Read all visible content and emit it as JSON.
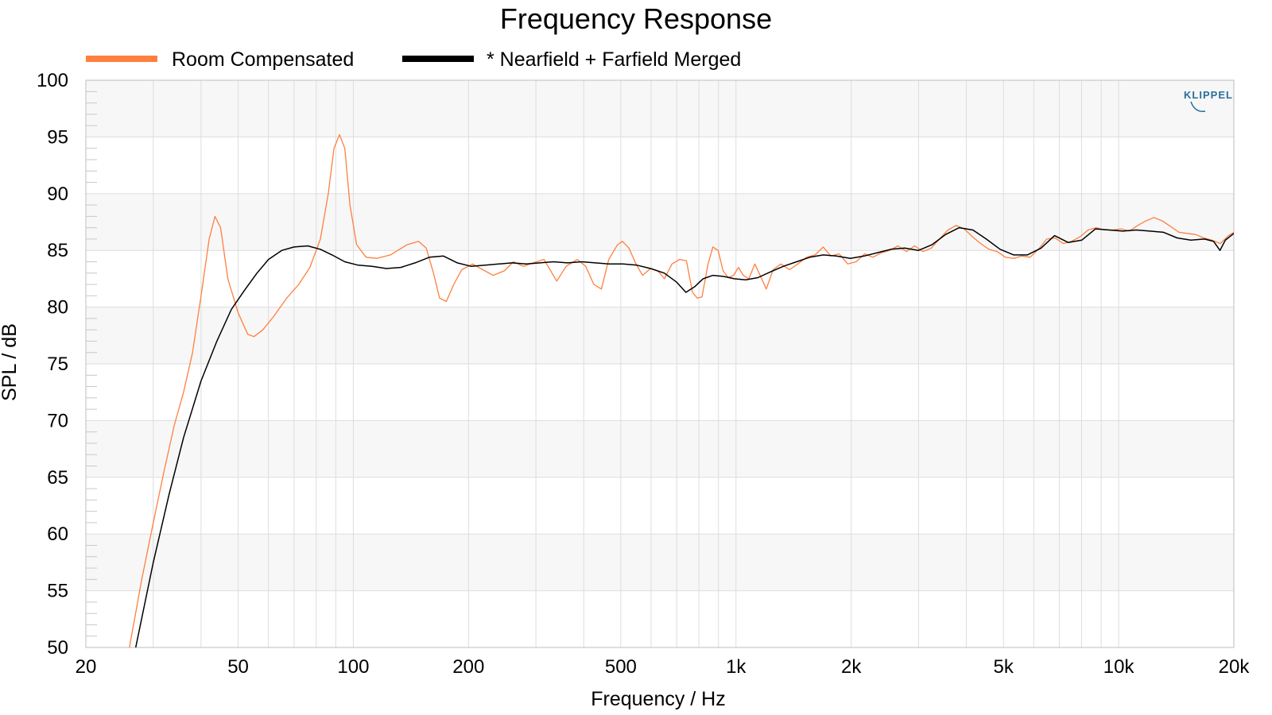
{
  "chart_data": {
    "type": "line",
    "title": "Frequency Response",
    "xlabel": "Frequency / Hz",
    "ylabel": "SPL / dB",
    "xscale": "log",
    "xlim": [
      20,
      20000
    ],
    "ylim": [
      50,
      100
    ],
    "grid": true,
    "legend_position": "top-left",
    "x_ticks": [
      {
        "value": 20,
        "label": "20"
      },
      {
        "value": 50,
        "label": "50"
      },
      {
        "value": 100,
        "label": "100"
      },
      {
        "value": 200,
        "label": "200"
      },
      {
        "value": 500,
        "label": "500"
      },
      {
        "value": 1000,
        "label": "1k"
      },
      {
        "value": 2000,
        "label": "2k"
      },
      {
        "value": 5000,
        "label": "5k"
      },
      {
        "value": 10000,
        "label": "10k"
      },
      {
        "value": 20000,
        "label": "20k"
      }
    ],
    "y_ticks": [
      {
        "value": 50,
        "label": "50"
      },
      {
        "value": 55,
        "label": "55"
      },
      {
        "value": 60,
        "label": "60"
      },
      {
        "value": 65,
        "label": "65"
      },
      {
        "value": 70,
        "label": "70"
      },
      {
        "value": 75,
        "label": "75"
      },
      {
        "value": 80,
        "label": "80"
      },
      {
        "value": 85,
        "label": "85"
      },
      {
        "value": 90,
        "label": "90"
      },
      {
        "value": 95,
        "label": "95"
      },
      {
        "value": 100,
        "label": "100"
      }
    ],
    "series": [
      {
        "name": "Room Compensated",
        "color": "#ff7f3f",
        "points": [
          [
            26,
            50
          ],
          [
            28,
            56
          ],
          [
            30,
            61
          ],
          [
            32,
            65.5
          ],
          [
            34,
            69.5
          ],
          [
            36,
            72.5
          ],
          [
            38,
            76
          ],
          [
            40,
            81
          ],
          [
            42,
            86
          ],
          [
            43.5,
            88
          ],
          [
            45,
            87
          ],
          [
            47,
            82.5
          ],
          [
            50,
            79.5
          ],
          [
            53,
            77.6
          ],
          [
            55,
            77.4
          ],
          [
            58,
            78
          ],
          [
            62,
            79.2
          ],
          [
            67,
            80.8
          ],
          [
            72,
            82
          ],
          [
            77,
            83.5
          ],
          [
            82,
            86
          ],
          [
            86,
            90
          ],
          [
            89,
            94
          ],
          [
            92,
            95.2
          ],
          [
            95,
            94
          ],
          [
            98,
            89
          ],
          [
            102,
            85.5
          ],
          [
            108,
            84.4
          ],
          [
            115,
            84.3
          ],
          [
            125,
            84.6
          ],
          [
            138,
            85.5
          ],
          [
            148,
            85.8
          ],
          [
            155,
            85.2
          ],
          [
            162,
            83
          ],
          [
            168,
            80.8
          ],
          [
            175,
            80.5
          ],
          [
            183,
            82
          ],
          [
            192,
            83.3
          ],
          [
            205,
            83.8
          ],
          [
            218,
            83.3
          ],
          [
            232,
            82.8
          ],
          [
            248,
            83.2
          ],
          [
            262,
            84
          ],
          [
            278,
            83.6
          ],
          [
            295,
            83.9
          ],
          [
            315,
            84.2
          ],
          [
            328,
            83.2
          ],
          [
            340,
            82.3
          ],
          [
            360,
            83.6
          ],
          [
            385,
            84.2
          ],
          [
            405,
            83.6
          ],
          [
            425,
            82
          ],
          [
            445,
            81.6
          ],
          [
            465,
            84.2
          ],
          [
            490,
            85.5
          ],
          [
            505,
            85.8
          ],
          [
            525,
            85.2
          ],
          [
            548,
            83.8
          ],
          [
            570,
            82.8
          ],
          [
            598,
            83.4
          ],
          [
            625,
            83.2
          ],
          [
            650,
            82.5
          ],
          [
            680,
            83.8
          ],
          [
            712,
            84.2
          ],
          [
            742,
            84.1
          ],
          [
            770,
            81.3
          ],
          [
            792,
            80.8
          ],
          [
            815,
            80.9
          ],
          [
            845,
            83.8
          ],
          [
            870,
            85.3
          ],
          [
            898,
            85
          ],
          [
            925,
            83.2
          ],
          [
            955,
            82.6
          ],
          [
            985,
            82.8
          ],
          [
            1015,
            83.5
          ],
          [
            1045,
            82.8
          ],
          [
            1080,
            82.5
          ],
          [
            1120,
            83.8
          ],
          [
            1160,
            82.7
          ],
          [
            1200,
            81.6
          ],
          [
            1250,
            83.3
          ],
          [
            1310,
            83.8
          ],
          [
            1380,
            83.3
          ],
          [
            1450,
            83.8
          ],
          [
            1530,
            84.4
          ],
          [
            1610,
            84.6
          ],
          [
            1690,
            85.3
          ],
          [
            1770,
            84.5
          ],
          [
            1860,
            84.7
          ],
          [
            1960,
            83.8
          ],
          [
            2060,
            84
          ],
          [
            2170,
            84.7
          ],
          [
            2280,
            84.4
          ],
          [
            2400,
            84.8
          ],
          [
            2520,
            85
          ],
          [
            2650,
            85.4
          ],
          [
            2790,
            84.9
          ],
          [
            2930,
            85.4
          ],
          [
            3080,
            84.9
          ],
          [
            3240,
            85.2
          ],
          [
            3400,
            86
          ],
          [
            3580,
            86.8
          ],
          [
            3760,
            87.2
          ],
          [
            3950,
            86.9
          ],
          [
            4150,
            86.2
          ],
          [
            4360,
            85.6
          ],
          [
            4580,
            85.1
          ],
          [
            4810,
            84.9
          ],
          [
            5060,
            84.4
          ],
          [
            5320,
            84.3
          ],
          [
            5590,
            84.5
          ],
          [
            5870,
            84.4
          ],
          [
            6170,
            85.1
          ],
          [
            6490,
            86
          ],
          [
            6820,
            86.1
          ],
          [
            7170,
            85.6
          ],
          [
            7530,
            85.8
          ],
          [
            7920,
            86.2
          ],
          [
            8320,
            86.8
          ],
          [
            8740,
            87
          ],
          [
            9190,
            86.8
          ],
          [
            9660,
            86.8
          ],
          [
            10150,
            86.9
          ],
          [
            10670,
            86.7
          ],
          [
            11210,
            87.2
          ],
          [
            11780,
            87.6
          ],
          [
            12380,
            87.9
          ],
          [
            13010,
            87.6
          ],
          [
            13680,
            87.1
          ],
          [
            14380,
            86.6
          ],
          [
            15110,
            86.5
          ],
          [
            15880,
            86.4
          ],
          [
            16690,
            86.1
          ],
          [
            17540,
            85.9
          ],
          [
            18430,
            85.6
          ],
          [
            19370,
            86.3
          ],
          [
            20000,
            86.6
          ]
        ]
      },
      {
        "name": "* Nearfield + Farfield Merged",
        "color": "#000000",
        "points": [
          [
            27,
            50
          ],
          [
            30,
            57.5
          ],
          [
            33,
            63.5
          ],
          [
            36,
            68.5
          ],
          [
            40,
            73.5
          ],
          [
            44,
            77
          ],
          [
            48,
            79.8
          ],
          [
            52,
            81.5
          ],
          [
            56,
            83
          ],
          [
            60,
            84.2
          ],
          [
            65,
            85
          ],
          [
            70,
            85.3
          ],
          [
            76,
            85.4
          ],
          [
            82,
            85.1
          ],
          [
            88,
            84.6
          ],
          [
            95,
            84
          ],
          [
            103,
            83.7
          ],
          [
            112,
            83.6
          ],
          [
            122,
            83.4
          ],
          [
            133,
            83.5
          ],
          [
            145,
            83.9
          ],
          [
            158,
            84.4
          ],
          [
            172,
            84.5
          ],
          [
            187,
            83.9
          ],
          [
            203,
            83.6
          ],
          [
            221,
            83.7
          ],
          [
            240,
            83.8
          ],
          [
            260,
            83.9
          ],
          [
            283,
            83.8
          ],
          [
            307,
            83.9
          ],
          [
            334,
            84
          ],
          [
            363,
            83.9
          ],
          [
            395,
            84
          ],
          [
            429,
            83.9
          ],
          [
            466,
            83.8
          ],
          [
            507,
            83.8
          ],
          [
            551,
            83.7
          ],
          [
            598,
            83.4
          ],
          [
            650,
            83
          ],
          [
            700,
            82.2
          ],
          [
            740,
            81.3
          ],
          [
            780,
            81.8
          ],
          [
            820,
            82.5
          ],
          [
            870,
            82.8
          ],
          [
            930,
            82.7
          ],
          [
            990,
            82.5
          ],
          [
            1060,
            82.4
          ],
          [
            1140,
            82.6
          ],
          [
            1230,
            83.1
          ],
          [
            1330,
            83.6
          ],
          [
            1440,
            84
          ],
          [
            1560,
            84.4
          ],
          [
            1690,
            84.6
          ],
          [
            1830,
            84.5
          ],
          [
            1990,
            84.3
          ],
          [
            2160,
            84.5
          ],
          [
            2340,
            84.8
          ],
          [
            2540,
            85.1
          ],
          [
            2760,
            85.2
          ],
          [
            3000,
            85
          ],
          [
            3250,
            85.5
          ],
          [
            3530,
            86.4
          ],
          [
            3830,
            87
          ],
          [
            4160,
            86.8
          ],
          [
            4510,
            86
          ],
          [
            4900,
            85.1
          ],
          [
            5320,
            84.6
          ],
          [
            5770,
            84.6
          ],
          [
            6270,
            85.2
          ],
          [
            6800,
            86.3
          ],
          [
            7380,
            85.7
          ],
          [
            8010,
            85.9
          ],
          [
            8700,
            86.9
          ],
          [
            9440,
            86.8
          ],
          [
            10250,
            86.7
          ],
          [
            11120,
            86.8
          ],
          [
            12070,
            86.7
          ],
          [
            13100,
            86.6
          ],
          [
            14220,
            86.1
          ],
          [
            15440,
            85.9
          ],
          [
            16760,
            86
          ],
          [
            17700,
            85.8
          ],
          [
            18400,
            85
          ],
          [
            19000,
            85.9
          ],
          [
            20000,
            86.5
          ]
        ]
      }
    ],
    "logo": "KLIPPEL"
  }
}
